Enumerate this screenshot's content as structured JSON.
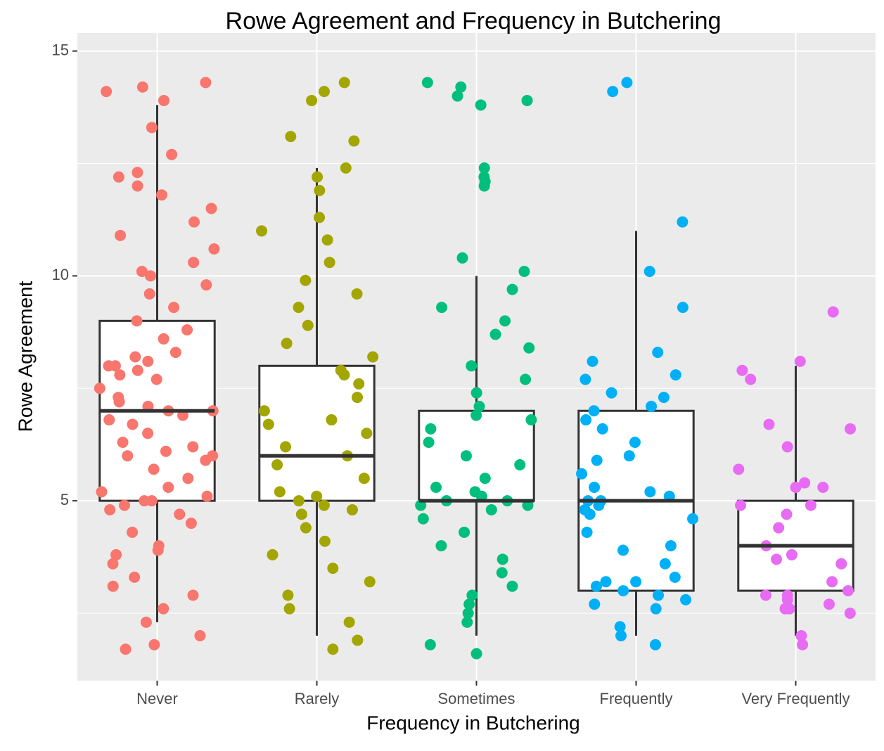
{
  "chart_data": {
    "type": "boxplot",
    "title": "Rowe Agreement and Frequency in Butchering",
    "x_label": "Frequency in Butchering",
    "y_label": "Rowe Agreement",
    "categories": [
      "Never",
      "Rarely",
      "Sometimes",
      "Frequently",
      "Very Frequently"
    ],
    "colors": [
      "#F8766D",
      "#A3A500",
      "#00BF7D",
      "#00B0F6",
      "#E76BF3"
    ],
    "ylim": [
      1,
      15.4
    ],
    "yticks": [
      5,
      10,
      15
    ],
    "minor_yticks": [
      2.5,
      7.5,
      12.5
    ],
    "grid": true,
    "box": {
      "min": [
        2.3,
        2.0,
        2.0,
        2.0,
        2.0
      ],
      "q1": [
        5,
        5,
        5,
        3,
        3
      ],
      "median": [
        7,
        6,
        5,
        5,
        4
      ],
      "q3": [
        9,
        8,
        7,
        7,
        5
      ],
      "max": [
        13.8,
        12.4,
        10,
        11,
        8
      ]
    },
    "points": [
      [
        14.3,
        14.1,
        13.9,
        14.2,
        13.3,
        12.7,
        12.2,
        12.0,
        11.8,
        11.5,
        11.2,
        10.9,
        10.6,
        10.3,
        10.0,
        9.8,
        9.6,
        9.3,
        9.0,
        8.8,
        8.6,
        8.3,
        8.1,
        8.0,
        7.9,
        7.7,
        7.5,
        7.3,
        7.1,
        7.0,
        6.9,
        6.7,
        6.5,
        6.3,
        6.1,
        6.0,
        5.9,
        5.7,
        5.5,
        5.3,
        5.1,
        5.0,
        4.9,
        4.7,
        4.5,
        4.3,
        4.0,
        3.8,
        3.6,
        3.3,
        3.1,
        2.9,
        2.6,
        2.3,
        2.0,
        1.8,
        1.7,
        8.2,
        7.8,
        7.2,
        6.8,
        6.2,
        5.2,
        4.8,
        8.0,
        7.0,
        6.0,
        5.0,
        12.3,
        10.1,
        3.9
      ],
      [
        14.3,
        14.1,
        13.9,
        13.1,
        13.0,
        12.4,
        12.2,
        11.9,
        11.3,
        11.0,
        10.8,
        10.3,
        9.9,
        9.6,
        9.3,
        8.9,
        8.5,
        8.2,
        7.9,
        7.6,
        7.3,
        7.0,
        6.8,
        6.5,
        6.2,
        6.0,
        5.8,
        5.5,
        5.2,
        5.0,
        4.9,
        4.7,
        4.4,
        4.1,
        3.8,
        3.5,
        3.2,
        2.9,
        2.6,
        2.3,
        1.9,
        1.7,
        6.7,
        5.1,
        4.8,
        7.8
      ],
      [
        14.3,
        14.2,
        14.0,
        13.9,
        13.8,
        12.4,
        12.2,
        12.1,
        12.0,
        10.4,
        10.1,
        9.7,
        9.3,
        9.0,
        8.7,
        8.4,
        8.0,
        7.7,
        7.4,
        7.1,
        6.9,
        6.6,
        6.3,
        6.0,
        5.8,
        5.5,
        5.3,
        5.1,
        5.0,
        4.9,
        4.8,
        4.6,
        4.3,
        4.0,
        3.7,
        3.4,
        3.1,
        2.9,
        2.7,
        2.5,
        2.3,
        1.8,
        1.6,
        5.2,
        4.9,
        5.0,
        6.8
      ],
      [
        14.3,
        14.1,
        11.2,
        10.1,
        9.3,
        8.3,
        8.1,
        7.8,
        7.7,
        7.4,
        7.3,
        7.1,
        7.0,
        6.8,
        6.6,
        6.3,
        6.0,
        5.9,
        5.6,
        5.3,
        5.2,
        5.1,
        5.0,
        4.9,
        4.7,
        4.6,
        4.3,
        4.0,
        3.9,
        3.6,
        3.3,
        3.2,
        3.1,
        3.0,
        2.9,
        2.8,
        2.7,
        2.6,
        2.2,
        2.0,
        1.8,
        5.0,
        4.8,
        3.2
      ],
      [
        9.2,
        8.1,
        7.9,
        7.7,
        6.7,
        6.6,
        6.2,
        5.7,
        5.3,
        5.4,
        5.3,
        4.9,
        4.9,
        4.7,
        4.4,
        4.0,
        3.8,
        3.7,
        3.6,
        3.2,
        2.9,
        3.0,
        2.8,
        2.7,
        2.6,
        2.5,
        2.6,
        2.0,
        1.8,
        2.9
      ]
    ]
  }
}
